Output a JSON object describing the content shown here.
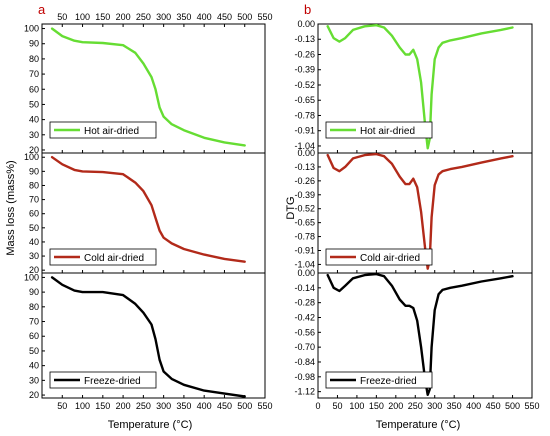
{
  "panel_letters": [
    "a",
    "b"
  ],
  "x_axis_title": "Temperature (°C)",
  "left_y_title": "Mass loss (mass%)",
  "right_y_title": "DTG",
  "chart_data": [
    {
      "type": "line",
      "panel": "a",
      "name": "Hot air-dried",
      "color": "#66dd33",
      "xlim": [
        0,
        550
      ],
      "ylim": [
        18,
        103
      ],
      "xticks": [
        50,
        100,
        150,
        200,
        250,
        300,
        350,
        400,
        450,
        500,
        550
      ],
      "yticks": [
        20,
        30,
        40,
        50,
        60,
        70,
        80,
        90,
        100
      ],
      "x": [
        25,
        50,
        80,
        100,
        150,
        200,
        230,
        250,
        270,
        280,
        290,
        300,
        320,
        350,
        400,
        450,
        500
      ],
      "y": [
        100,
        95,
        92,
        91,
        90.5,
        89,
        84,
        77,
        68,
        60,
        48,
        42,
        37,
        33,
        28,
        25,
        23
      ]
    },
    {
      "type": "line",
      "panel": "a",
      "name": "Cold air-dried",
      "color": "#b22a1a",
      "xlim": [
        0,
        550
      ],
      "ylim": [
        18,
        103
      ],
      "xticks": [
        50,
        100,
        150,
        200,
        250,
        300,
        350,
        400,
        450,
        500,
        550
      ],
      "yticks": [
        20,
        30,
        40,
        50,
        60,
        70,
        80,
        90,
        100
      ],
      "x": [
        25,
        50,
        80,
        100,
        150,
        200,
        230,
        250,
        270,
        280,
        290,
        300,
        320,
        350,
        400,
        450,
        500
      ],
      "y": [
        100,
        95,
        91,
        90,
        89.5,
        88,
        82,
        76,
        66,
        57,
        48,
        43,
        39,
        35,
        31,
        28,
        26
      ]
    },
    {
      "type": "line",
      "panel": "a",
      "name": "Freeze-dried",
      "color": "#000000",
      "xlim": [
        0,
        550
      ],
      "ylim": [
        18,
        103
      ],
      "xticks": [
        50,
        100,
        150,
        200,
        250,
        300,
        350,
        400,
        450,
        500,
        550
      ],
      "yticks": [
        20,
        30,
        40,
        50,
        60,
        70,
        80,
        90,
        100
      ],
      "x": [
        25,
        50,
        80,
        100,
        150,
        200,
        230,
        250,
        270,
        280,
        290,
        300,
        320,
        350,
        400,
        450,
        500
      ],
      "y": [
        100,
        95,
        91,
        90,
        90,
        88,
        82,
        76,
        68,
        58,
        44,
        36,
        31,
        27,
        23,
        21,
        19
      ]
    },
    {
      "type": "line",
      "panel": "b",
      "name": "Hot air-dried",
      "color": "#66dd33",
      "xlim": [
        0,
        550
      ],
      "ylim": [
        -1.1,
        0.0
      ],
      "xticks": [
        0,
        50,
        100,
        150,
        200,
        250,
        300,
        350,
        400,
        450,
        500,
        550
      ],
      "yticks": [
        "0.00",
        "-0.13",
        "-0.26",
        "-0.39",
        "-0.52",
        "-0.65",
        "-0.78",
        "-0.91",
        "-1.04"
      ],
      "x": [
        25,
        40,
        55,
        70,
        90,
        120,
        150,
        170,
        190,
        210,
        225,
        235,
        245,
        255,
        265,
        275,
        282,
        287,
        292,
        300,
        310,
        320,
        340,
        370,
        420,
        470,
        500
      ],
      "y": [
        -0.02,
        -0.12,
        -0.15,
        -0.12,
        -0.05,
        -0.02,
        -0.01,
        -0.03,
        -0.1,
        -0.2,
        -0.26,
        -0.26,
        -0.22,
        -0.3,
        -0.5,
        -0.85,
        -1.06,
        -0.98,
        -0.6,
        -0.3,
        -0.2,
        -0.16,
        -0.14,
        -0.12,
        -0.08,
        -0.05,
        -0.03
      ]
    },
    {
      "type": "line",
      "panel": "b",
      "name": "Cold air-dried",
      "color": "#b22a1a",
      "xlim": [
        0,
        550
      ],
      "ylim": [
        -1.12,
        0.0
      ],
      "xticks": [
        0,
        50,
        100,
        150,
        200,
        250,
        300,
        350,
        400,
        450,
        500,
        550
      ],
      "yticks": [
        "0.00",
        "-0.13",
        "-0.26",
        "-0.39",
        "-0.52",
        "-0.65",
        "-0.78",
        "-0.91",
        "-1.04"
      ],
      "x": [
        25,
        40,
        55,
        70,
        90,
        120,
        150,
        170,
        190,
        210,
        225,
        235,
        245,
        255,
        265,
        275,
        282,
        287,
        292,
        300,
        310,
        320,
        340,
        370,
        420,
        470,
        500
      ],
      "y": [
        -0.02,
        -0.14,
        -0.17,
        -0.13,
        -0.05,
        -0.02,
        -0.01,
        -0.03,
        -0.1,
        -0.22,
        -0.29,
        -0.29,
        -0.24,
        -0.32,
        -0.55,
        -0.88,
        -1.08,
        -1.0,
        -0.6,
        -0.3,
        -0.2,
        -0.17,
        -0.15,
        -0.13,
        -0.09,
        -0.05,
        -0.03
      ]
    },
    {
      "type": "line",
      "panel": "b",
      "name": "Freeze-dried",
      "color": "#000000",
      "xlim": [
        0,
        550
      ],
      "ylim": [
        -1.18,
        0.0
      ],
      "xticks": [
        0,
        50,
        100,
        150,
        200,
        250,
        300,
        350,
        400,
        450,
        500,
        550
      ],
      "yticks": [
        "0.00",
        "-0.14",
        "-0.28",
        "-0.42",
        "-0.56",
        "-0.70",
        "-0.84",
        "-0.98",
        "-1.12"
      ],
      "x": [
        25,
        40,
        55,
        70,
        90,
        120,
        150,
        170,
        190,
        210,
        225,
        235,
        245,
        255,
        265,
        275,
        282,
        287,
        292,
        300,
        310,
        320,
        340,
        370,
        420,
        470,
        500
      ],
      "y": [
        -0.02,
        -0.14,
        -0.17,
        -0.12,
        -0.05,
        -0.02,
        -0.01,
        -0.03,
        -0.12,
        -0.25,
        -0.31,
        -0.31,
        -0.33,
        -0.45,
        -0.7,
        -1.0,
        -1.15,
        -1.1,
        -0.7,
        -0.35,
        -0.2,
        -0.16,
        -0.14,
        -0.12,
        -0.08,
        -0.05,
        -0.03
      ]
    }
  ]
}
